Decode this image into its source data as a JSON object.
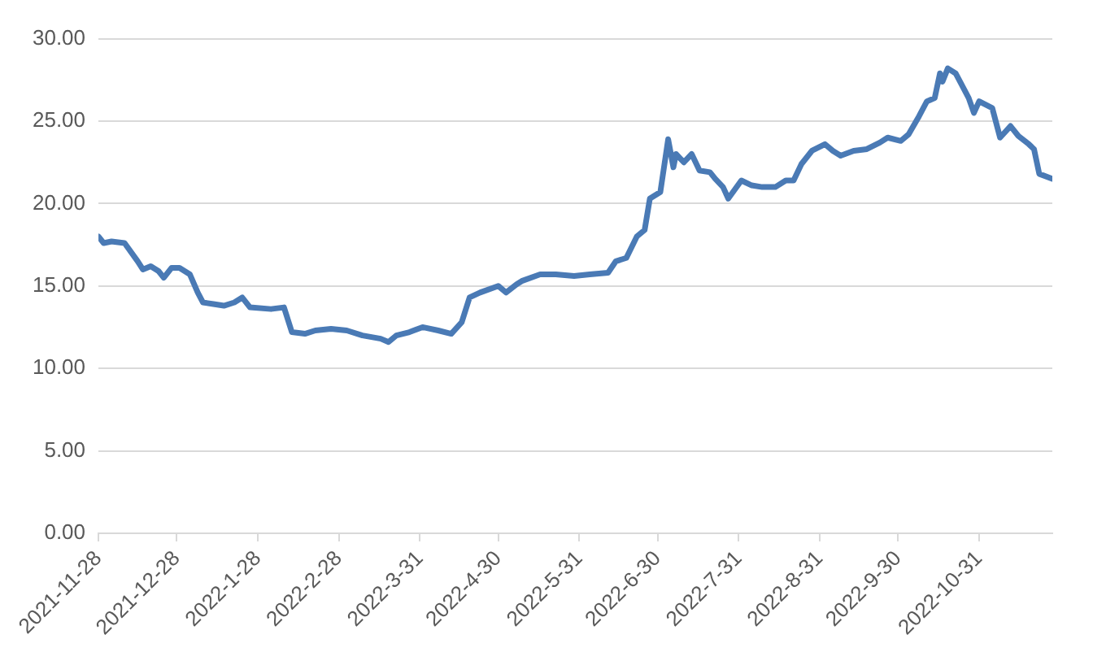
{
  "chart_data": {
    "type": "line",
    "x": [
      "2021-11-28",
      "2021-11-30",
      "2021-12-03",
      "2021-12-08",
      "2021-12-13",
      "2021-12-15",
      "2021-12-18",
      "2021-12-21",
      "2021-12-23",
      "2021-12-26",
      "2021-12-29",
      "2022-01-02",
      "2022-01-05",
      "2022-01-07",
      "2022-01-11",
      "2022-01-15",
      "2022-01-19",
      "2022-01-22",
      "2022-01-25",
      "2022-02-02",
      "2022-02-07",
      "2022-02-10",
      "2022-02-15",
      "2022-02-19",
      "2022-02-25",
      "2022-03-03",
      "2022-03-09",
      "2022-03-16",
      "2022-03-19",
      "2022-03-22",
      "2022-03-27",
      "2022-04-01",
      "2022-04-07",
      "2022-04-12",
      "2022-04-16",
      "2022-04-19",
      "2022-04-23",
      "2022-04-30",
      "2022-05-03",
      "2022-05-07",
      "2022-05-09",
      "2022-05-16",
      "2022-05-22",
      "2022-05-29",
      "2022-06-04",
      "2022-06-11",
      "2022-06-14",
      "2022-06-18",
      "2022-06-22",
      "2022-06-25",
      "2022-06-27",
      "2022-07-01",
      "2022-07-04",
      "2022-07-06",
      "2022-07-07",
      "2022-07-10",
      "2022-07-13",
      "2022-07-16",
      "2022-07-20",
      "2022-07-22",
      "2022-07-25",
      "2022-07-27",
      "2022-08-01",
      "2022-08-05",
      "2022-08-09",
      "2022-08-14",
      "2022-08-18",
      "2022-08-21",
      "2022-08-24",
      "2022-08-28",
      "2022-09-02",
      "2022-09-05",
      "2022-09-08",
      "2022-09-13",
      "2022-09-18",
      "2022-09-23",
      "2022-09-26",
      "2022-10-01",
      "2022-10-04",
      "2022-10-08",
      "2022-10-11",
      "2022-10-14",
      "2022-10-16",
      "2022-10-17",
      "2022-10-19",
      "2022-10-22",
      "2022-10-25",
      "2022-10-27",
      "2022-10-29",
      "2022-10-31",
      "2022-11-05",
      "2022-11-08",
      "2022-11-12",
      "2022-11-15",
      "2022-11-19",
      "2022-11-21",
      "2022-11-23",
      "2022-11-28"
    ],
    "series": [
      {
        "color": "#4a7ab5",
        "values": [
          18.0,
          17.6,
          17.7,
          17.6,
          16.5,
          16.0,
          16.2,
          15.9,
          15.5,
          16.1,
          16.1,
          15.7,
          14.6,
          14.0,
          13.9,
          13.8,
          14.0,
          14.3,
          13.7,
          13.6,
          13.7,
          12.2,
          12.1,
          12.3,
          12.4,
          12.3,
          12.0,
          11.8,
          11.6,
          12.0,
          12.2,
          12.5,
          12.3,
          12.1,
          12.8,
          14.3,
          14.6,
          15.0,
          14.6,
          15.1,
          15.3,
          15.7,
          15.7,
          15.6,
          15.7,
          15.8,
          16.5,
          16.7,
          18.0,
          18.4,
          20.3,
          20.7,
          23.9,
          22.2,
          23.0,
          22.5,
          23.0,
          22.0,
          21.9,
          21.5,
          21.0,
          20.3,
          21.4,
          21.1,
          21.0,
          21.0,
          21.4,
          21.4,
          22.4,
          23.2,
          23.6,
          23.2,
          22.9,
          23.2,
          23.3,
          23.7,
          24.0,
          23.8,
          24.2,
          25.3,
          26.2,
          26.4,
          27.9,
          27.4,
          28.2,
          27.9,
          27.0,
          26.4,
          25.5,
          26.2,
          25.8,
          24.0,
          24.7,
          24.1,
          23.6,
          23.3,
          21.8,
          21.5
        ]
      }
    ],
    "xlim": [
      "2021-11-28",
      "2022-11-28"
    ],
    "xticks": [
      {
        "value": "2021-11-28",
        "label": "2021-11-28"
      },
      {
        "value": "2021-12-28",
        "label": "2021-12-28"
      },
      {
        "value": "2022-01-28",
        "label": "2022-1-28"
      },
      {
        "value": "2022-02-28",
        "label": "2022-2-28"
      },
      {
        "value": "2022-03-31",
        "label": "2022-3-31"
      },
      {
        "value": "2022-04-30",
        "label": "2022-4-30"
      },
      {
        "value": "2022-05-31",
        "label": "2022-5-31"
      },
      {
        "value": "2022-06-30",
        "label": "2022-6-30"
      },
      {
        "value": "2022-07-31",
        "label": "2022-7-31"
      },
      {
        "value": "2022-08-31",
        "label": "2022-8-31"
      },
      {
        "value": "2022-09-30",
        "label": "2022-9-30"
      },
      {
        "value": "2022-10-31",
        "label": "2022-10-31"
      }
    ],
    "ylim": [
      0,
      30
    ],
    "yticks": [
      {
        "value": 0,
        "label": "0.00"
      },
      {
        "value": 5,
        "label": "5.00"
      },
      {
        "value": 10,
        "label": "10.00"
      },
      {
        "value": 15,
        "label": "15.00"
      },
      {
        "value": 20,
        "label": "20.00"
      },
      {
        "value": 25,
        "label": "25.00"
      },
      {
        "value": 30,
        "label": "30.00"
      }
    ],
    "grid": "y",
    "legend": false,
    "marker": "none",
    "line_style": "solid"
  }
}
